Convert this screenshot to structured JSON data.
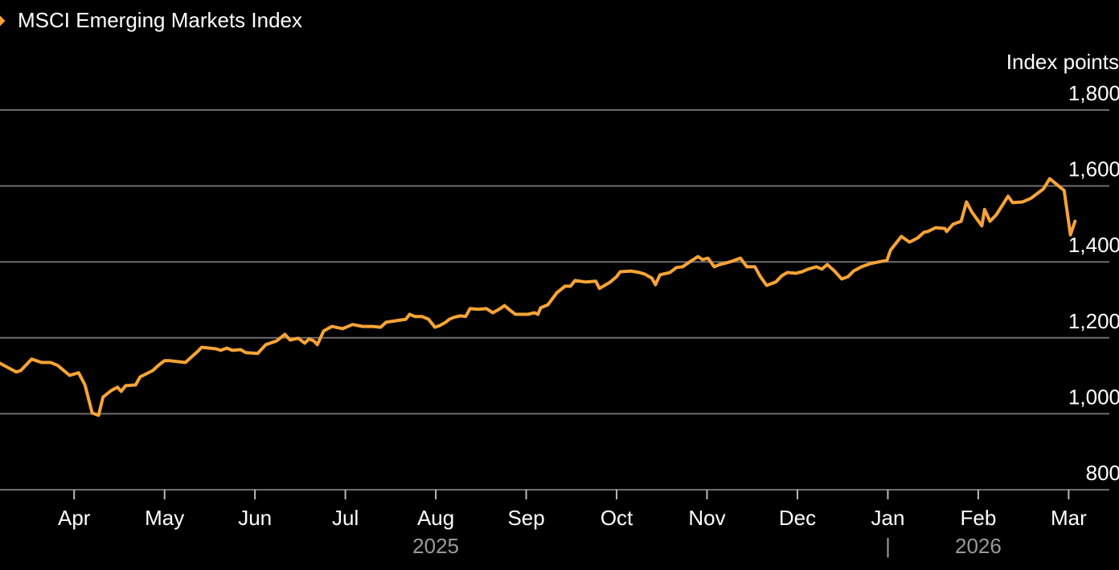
{
  "chart_data": {
    "type": "line",
    "title": "MSCI Emerging Markets Index",
    "ylabel": "Index points",
    "xlabel": "",
    "ylim": [
      800,
      1800
    ],
    "yticks": [
      800,
      1000,
      1200,
      1400,
      1600,
      1800
    ],
    "ytick_labels": [
      "800",
      "1,000",
      "1,200",
      "1,400",
      "1,600",
      "1,800"
    ],
    "x_unit": "months since Jan 2025 (3 = Apr 2025)",
    "xlim": [
      2.18,
      14.45
    ],
    "xticks": [
      3,
      4,
      5,
      6,
      7,
      8,
      9,
      10,
      11,
      12,
      13,
      14
    ],
    "xtick_labels": [
      "Apr",
      "May",
      "Jun",
      "Jul",
      "Aug",
      "Sep",
      "Oct",
      "Nov",
      "Dec",
      "Jan",
      "Feb",
      "Mar"
    ],
    "year_labels": [
      {
        "label": "2025",
        "x": 7
      },
      {
        "label": "2026",
        "x": 13
      }
    ],
    "year_separator": {
      "label": "|",
      "x": 12
    },
    "grid": true,
    "legend": "top-left",
    "series": [
      {
        "name": "MSCI Emerging Markets Index",
        "color": "#f7a436",
        "x": [
          2.18,
          2.36,
          2.41,
          2.53,
          2.64,
          2.74,
          2.82,
          2.95,
          3.05,
          3.12,
          3.2,
          3.27,
          3.32,
          3.41,
          3.48,
          3.52,
          3.57,
          3.68,
          3.73,
          3.87,
          3.94,
          4.0,
          4.05,
          4.23,
          4.37,
          4.41,
          4.57,
          4.62,
          4.69,
          4.75,
          4.84,
          4.9,
          5.03,
          5.12,
          5.24,
          5.33,
          5.39,
          5.48,
          5.55,
          5.6,
          5.65,
          5.69,
          5.76,
          5.85,
          5.97,
          6.08,
          6.19,
          6.3,
          6.39,
          6.45,
          6.56,
          6.67,
          6.71,
          6.77,
          6.85,
          6.92,
          6.99,
          7.04,
          7.11,
          7.15,
          7.2,
          7.27,
          7.33,
          7.38,
          7.47,
          7.56,
          7.63,
          7.7,
          7.76,
          7.82,
          7.88,
          8.02,
          8.09,
          8.13,
          8.16,
          8.24,
          8.34,
          8.43,
          8.49,
          8.54,
          8.66,
          8.77,
          8.81,
          8.93,
          9.0,
          9.04,
          9.16,
          9.25,
          9.31,
          9.39,
          9.43,
          9.48,
          9.59,
          9.66,
          9.73,
          9.82,
          9.9,
          9.95,
          10.01,
          10.08,
          10.14,
          10.21,
          10.28,
          10.37,
          10.44,
          10.53,
          10.59,
          10.66,
          10.76,
          10.83,
          10.89,
          10.98,
          11.05,
          11.12,
          11.21,
          11.27,
          11.33,
          11.41,
          11.49,
          11.56,
          11.62,
          11.71,
          11.8,
          11.9,
          11.99,
          12.03,
          12.15,
          12.24,
          12.33,
          12.4,
          12.44,
          12.53,
          12.63,
          12.65,
          12.72,
          12.81,
          12.87,
          12.93,
          13.04,
          13.07,
          13.13,
          13.2,
          13.33,
          13.38,
          13.49,
          13.58,
          13.72,
          13.79,
          13.95,
          14.02,
          14.07
        ],
        "y": [
          1133,
          1110,
          1114,
          1144,
          1135,
          1135,
          1127,
          1101,
          1108,
          1076,
          1002,
          996,
          1044,
          1061,
          1070,
          1059,
          1074,
          1076,
          1097,
          1114,
          1129,
          1140,
          1140,
          1135,
          1165,
          1175,
          1171,
          1167,
          1173,
          1167,
          1169,
          1161,
          1159,
          1182,
          1192,
          1209,
          1194,
          1199,
          1186,
          1197,
          1192,
          1182,
          1218,
          1230,
          1224,
          1235,
          1230,
          1230,
          1228,
          1241,
          1245,
          1249,
          1262,
          1256,
          1256,
          1249,
          1228,
          1232,
          1241,
          1249,
          1254,
          1258,
          1256,
          1277,
          1275,
          1277,
          1266,
          1275,
          1285,
          1273,
          1262,
          1262,
          1266,
          1262,
          1279,
          1287,
          1319,
          1336,
          1336,
          1351,
          1347,
          1349,
          1330,
          1347,
          1361,
          1374,
          1376,
          1372,
          1368,
          1357,
          1340,
          1366,
          1372,
          1385,
          1387,
          1402,
          1414,
          1406,
          1410,
          1387,
          1393,
          1397,
          1402,
          1410,
          1387,
          1387,
          1361,
          1338,
          1347,
          1364,
          1372,
          1370,
          1374,
          1381,
          1387,
          1381,
          1393,
          1376,
          1355,
          1361,
          1376,
          1387,
          1395,
          1400,
          1404,
          1431,
          1467,
          1452,
          1463,
          1478,
          1480,
          1490,
          1488,
          1480,
          1499,
          1507,
          1558,
          1531,
          1495,
          1538,
          1507,
          1524,
          1573,
          1556,
          1558,
          1567,
          1592,
          1619,
          1588,
          1471,
          1507
        ]
      }
    ]
  }
}
